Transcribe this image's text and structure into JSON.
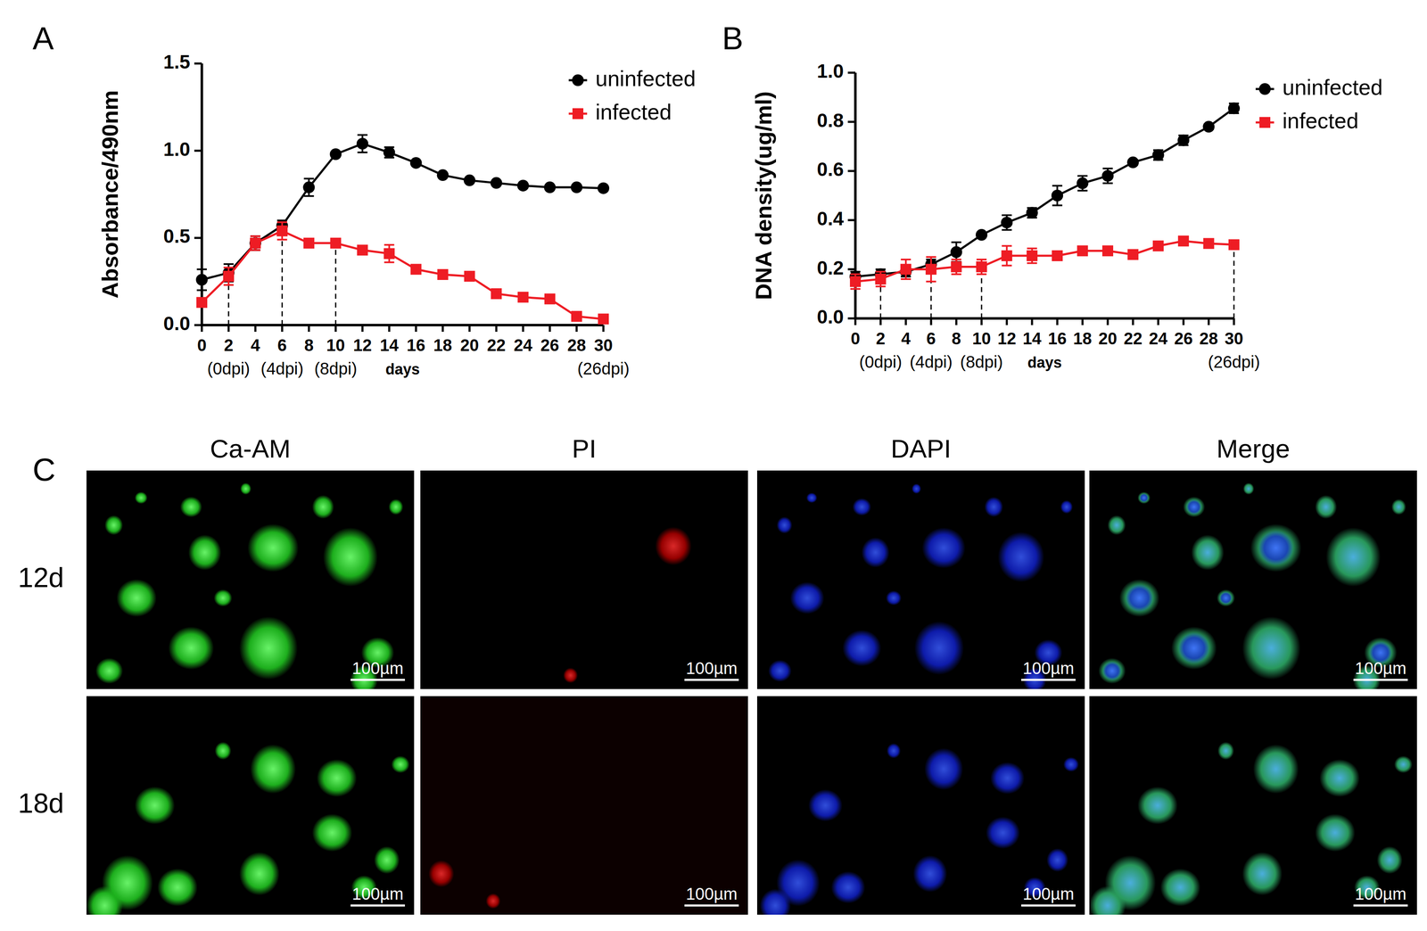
{
  "chart_data": [
    {
      "type": "line",
      "panel_label": "A",
      "xlabel": "days",
      "ylabel": "Absorbance/490nm",
      "x": [
        0,
        2,
        4,
        6,
        8,
        10,
        12,
        14,
        16,
        18,
        20,
        22,
        24,
        26,
        28,
        30
      ],
      "xlim": [
        0,
        30
      ],
      "xticks": [
        0,
        2,
        4,
        6,
        8,
        10,
        12,
        14,
        16,
        18,
        20,
        22,
        24,
        26,
        28,
        30
      ],
      "ylim": [
        0,
        1.5
      ],
      "yticks": [
        {
          "value": 0,
          "label": "0.0"
        },
        0.5,
        {
          "value": 1,
          "label": "1.0"
        },
        1.5
      ],
      "legend": "top-right",
      "series": [
        {
          "name": "uninfected",
          "color": "#000000",
          "marker": "circle",
          "values": [
            0.26,
            0.3,
            0.47,
            0.57,
            0.79,
            0.98,
            1.04,
            0.99,
            0.93,
            0.86,
            0.83,
            0.815,
            0.8,
            0.79,
            0.79,
            0.785
          ],
          "errors": [
            0.06,
            0.05,
            0.04,
            0.03,
            0.05,
            0.01,
            0.05,
            0.03,
            0.01,
            0.01,
            0.01,
            0.01,
            0.01,
            0.01,
            0.01,
            0.01
          ]
        },
        {
          "name": "infected",
          "color": "#ee1c24",
          "marker": "square",
          "values": [
            0.13,
            0.28,
            0.47,
            0.54,
            0.47,
            0.47,
            0.43,
            0.41,
            0.32,
            0.29,
            0.28,
            0.18,
            0.16,
            0.15,
            0.05,
            0.035
          ],
          "errors": [
            0.02,
            0.05,
            0.04,
            0.05,
            0.02,
            0.02,
            0.02,
            0.05,
            0.02,
            0.02,
            0.02,
            0.02,
            0.02,
            0.02,
            0.02,
            0.01
          ]
        }
      ],
      "annotations": [
        {
          "x": 2,
          "text": "(0dpi)",
          "line_style": "dashed"
        },
        {
          "x": 6,
          "text": "(4dpi)",
          "line_style": "dashed"
        },
        {
          "x": 10,
          "text": "(8dpi)",
          "line_style": "dashed"
        },
        {
          "x": 30,
          "text": "(26dpi)"
        }
      ]
    },
    {
      "type": "line",
      "panel_label": "B",
      "xlabel": "days",
      "ylabel": "DNA density(ug/ml)",
      "x": [
        0,
        2,
        4,
        6,
        8,
        10,
        12,
        14,
        16,
        18,
        20,
        22,
        24,
        26,
        28,
        30
      ],
      "xlim": [
        0,
        30
      ],
      "xticks": [
        0,
        2,
        4,
        6,
        8,
        10,
        12,
        14,
        16,
        18,
        20,
        22,
        24,
        26,
        28,
        30
      ],
      "ylim": [
        0,
        1
      ],
      "yticks": [
        {
          "value": 0,
          "label": "0.0"
        },
        0.2,
        0.4,
        0.6,
        0.8,
        {
          "value": 1,
          "label": "1.0"
        }
      ],
      "legend": "top-right",
      "series": [
        {
          "name": "uninfected",
          "color": "#000000",
          "marker": "circle",
          "values": [
            0.17,
            0.18,
            0.19,
            0.22,
            0.27,
            0.34,
            0.39,
            0.43,
            0.5,
            0.55,
            0.58,
            0.635,
            0.665,
            0.725,
            0.78,
            0.855
          ],
          "errors": [
            0.02,
            0.02,
            0.02,
            0.02,
            0.04,
            0.01,
            0.03,
            0.02,
            0.04,
            0.03,
            0.03,
            0.01,
            0.02,
            0.02,
            0.01,
            0.02
          ]
        },
        {
          "name": "infected",
          "color": "#ee1c24",
          "marker": "square",
          "values": [
            0.15,
            0.16,
            0.2,
            0.2,
            0.21,
            0.21,
            0.255,
            0.255,
            0.255,
            0.275,
            0.275,
            0.26,
            0.295,
            0.315,
            0.305,
            0.3
          ],
          "errors": [
            0.03,
            0.03,
            0.04,
            0.05,
            0.03,
            0.03,
            0.04,
            0.03,
            0.01,
            0.01,
            0.01,
            0.01,
            0.01,
            0.01,
            0.01,
            0.01
          ]
        }
      ],
      "annotations": [
        {
          "x": 2,
          "text": "(0dpi)",
          "line_style": "dashed"
        },
        {
          "x": 6,
          "text": "(4dpi)",
          "line_style": "dashed"
        },
        {
          "x": 10,
          "text": "(8dpi)",
          "line_style": "dashed"
        },
        {
          "x": 30,
          "text": "(26dpi)",
          "line_style": "dashed"
        }
      ]
    }
  ],
  "panel_c": {
    "label": "C",
    "columns": [
      "Ca-AM",
      "PI",
      "DAPI",
      "Merge"
    ],
    "rows": [
      "12d",
      "18d"
    ],
    "scale_bar": "100µm"
  }
}
